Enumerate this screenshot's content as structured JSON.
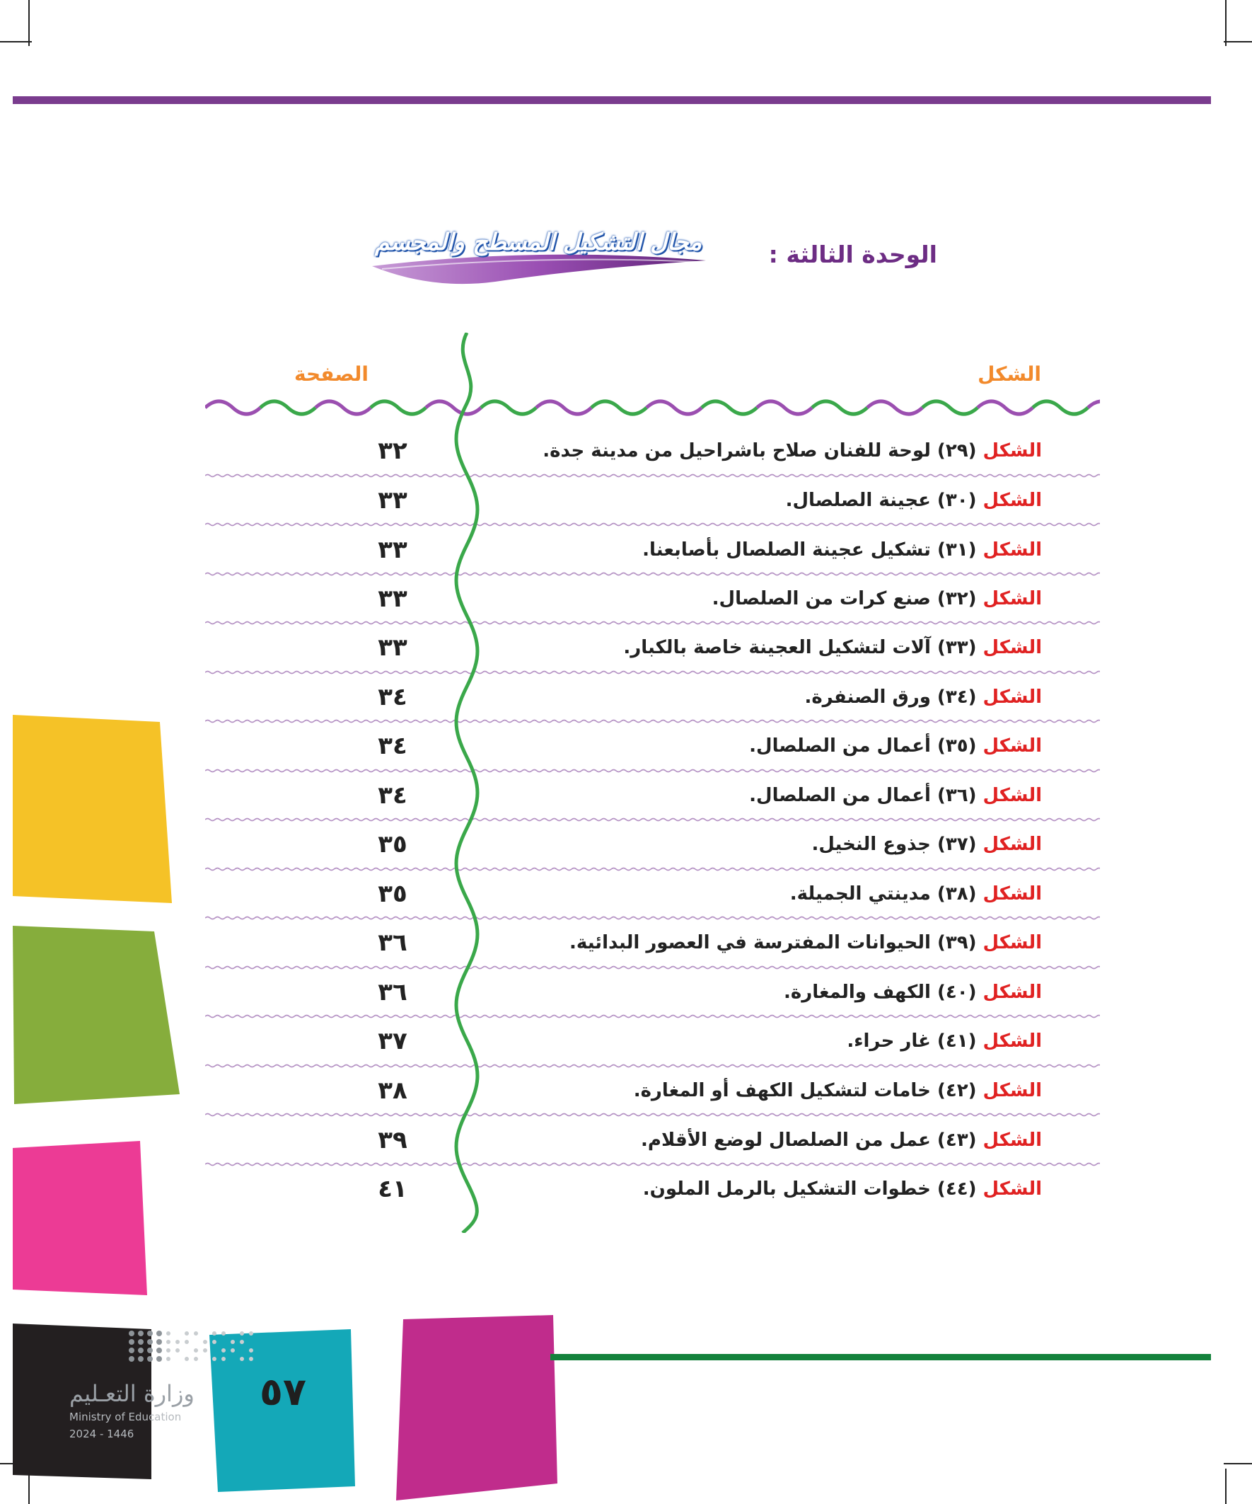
{
  "header": {
    "unit_label": "الوحدة الثالثة :",
    "unit_title": "مجال التشكيل المسطح والمجسم"
  },
  "table": {
    "col_figure": "الشكل",
    "col_page": "الصفحة",
    "rows": [
      {
        "label": "الشكل",
        "text": "(٢٩) لوحة للفنان صلاح باشراحيل من مدينة جدة.",
        "page": "٣٢"
      },
      {
        "label": "الشكل",
        "text": "(٣٠) عجينة الصلصال.",
        "page": "٣٣"
      },
      {
        "label": "الشكل",
        "text": "(٣١) تشكيل عجينة الصلصال بأصابعنا.",
        "page": "٣٣"
      },
      {
        "label": "الشكل",
        "text": "(٣٢) صنع كرات من الصلصال.",
        "page": "٣٣"
      },
      {
        "label": "الشكل",
        "text": "(٣٣) آلات لتشكيل العجينة خاصة بالكبار.",
        "page": "٣٣"
      },
      {
        "label": "الشكل",
        "text": "(٣٤) ورق الصنفرة.",
        "page": "٣٤"
      },
      {
        "label": "الشكل",
        "text": "(٣٥) أعمال من الصلصال.",
        "page": "٣٤"
      },
      {
        "label": "الشكل",
        "text": "(٣٦) أعمال من الصلصال.",
        "page": "٣٤"
      },
      {
        "label": "الشكل",
        "text": "(٣٧) جذوع النخيل.",
        "page": "٣٥"
      },
      {
        "label": "الشكل",
        "text": "(٣٨) مدينتي الجميلة.",
        "page": "٣٥"
      },
      {
        "label": "الشكل",
        "text": "(٣٩) الحيوانات المفترسة في العصور البدائية.",
        "page": "٣٦"
      },
      {
        "label": "الشكل",
        "text": "(٤٠) الكهف والمغارة.",
        "page": "٣٦"
      },
      {
        "label": "الشكل",
        "text": "(٤١) غار حراء.",
        "page": "٣٧"
      },
      {
        "label": "الشكل",
        "text": "(٤٢) خامات لتشكيل الكهف أو المغارة.",
        "page": "٣٨"
      },
      {
        "label": "الشكل",
        "text": "(٤٣) عمل من الصلصال لوضع الأقلام.",
        "page": "٣٩"
      },
      {
        "label": "الشكل",
        "text": "(٤٤) خطوات التشكيل بالرمل الملون.",
        "page": "٤١"
      }
    ]
  },
  "footer": {
    "page_number": "٥٧",
    "ministry_ar": "وزارة التعـليم",
    "ministry_en": "Ministry of Education",
    "year": "2024 - 1446"
  },
  "colors": {
    "purple": "#7a3c8e",
    "green": "#14823c",
    "orange": "#f28a2c",
    "red": "#e02222",
    "yellow": "#f5c227",
    "lime": "#86ad3c",
    "pink": "#ec3b95",
    "teal": "#14a8b8",
    "magenta": "#c02c8c"
  }
}
